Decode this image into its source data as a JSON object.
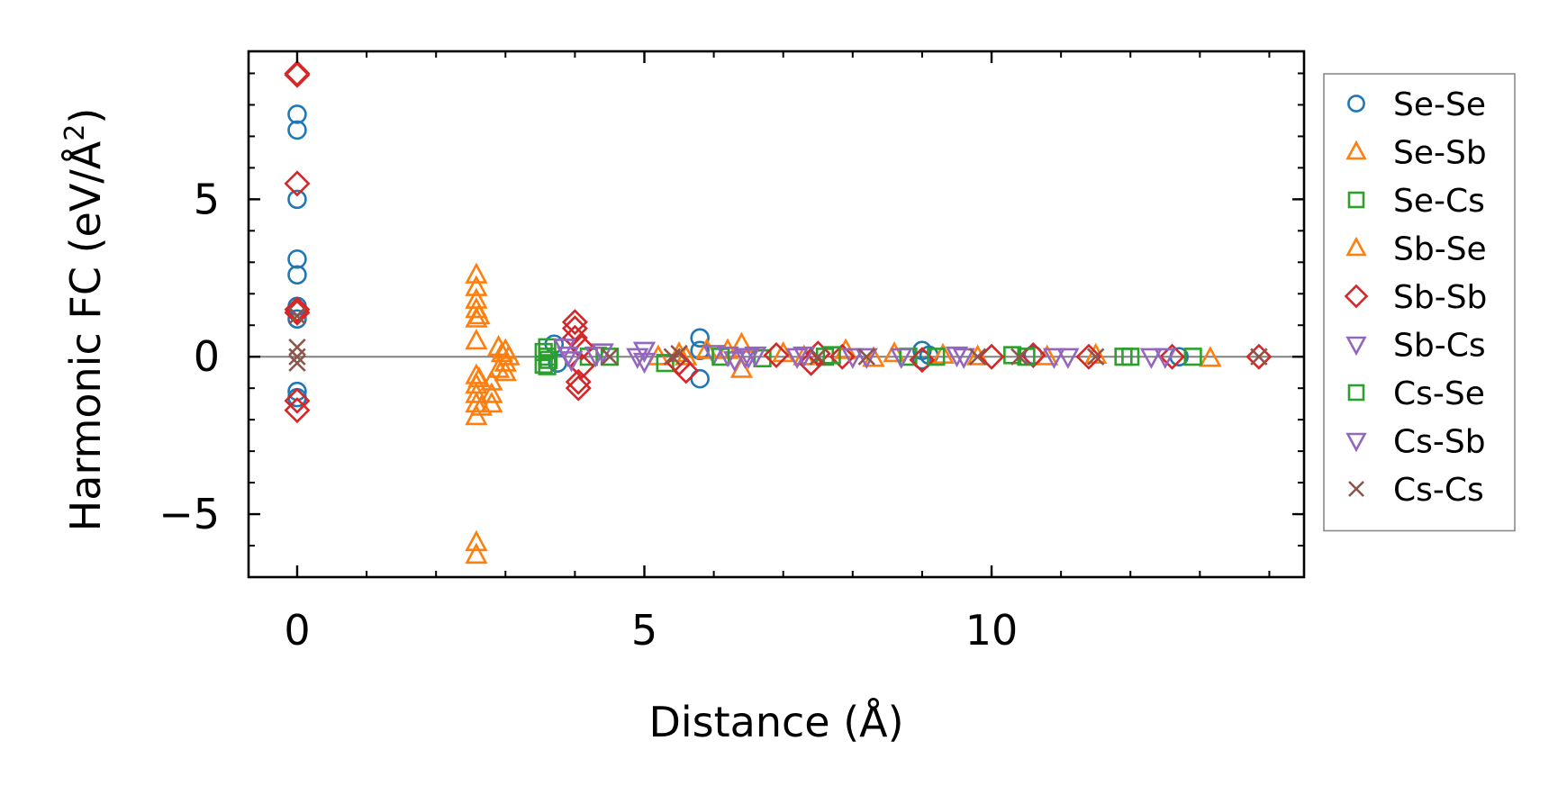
{
  "chart_data": {
    "type": "scatter",
    "xlabel": "Distance (Å)",
    "ylabel": "Harmonic FC (eV/Å",
    "ylabel_sup": "2",
    "ylabel_close": ")",
    "xlim": [
      -0.7,
      14.5
    ],
    "ylim": [
      -7.0,
      9.7
    ],
    "xticks": [
      0,
      5,
      10
    ],
    "xtick_labels": [
      "0",
      "5",
      "10"
    ],
    "yticks": [
      -5,
      0,
      5
    ],
    "ytick_labels": [
      "−5",
      "0",
      "5"
    ],
    "x_minor_step": 1,
    "y_minor_step": 1,
    "zero_line": true,
    "legend_position": "outside-right",
    "series": [
      {
        "name": "Se-Se",
        "marker": "circle",
        "color": "#1f77b4",
        "points": [
          [
            0,
            7.7
          ],
          [
            0,
            7.2
          ],
          [
            0,
            5.0
          ],
          [
            0,
            3.1
          ],
          [
            0,
            2.6
          ],
          [
            0,
            1.6
          ],
          [
            0,
            1.2
          ],
          [
            0,
            -1.1
          ],
          [
            0,
            -1.3
          ],
          [
            3.7,
            0.4
          ],
          [
            3.75,
            -0.2
          ],
          [
            5.8,
            0.6
          ],
          [
            5.8,
            -0.7
          ],
          [
            5.8,
            0.2
          ],
          [
            9.0,
            0.2
          ],
          [
            9.0,
            -0.1
          ],
          [
            9.1,
            0.05
          ],
          [
            10.6,
            0.05
          ],
          [
            12.7,
            0.0
          ]
        ]
      },
      {
        "name": "Se-Sb",
        "marker": "triangle-up",
        "color": "#ff7f0e",
        "points": [
          [
            2.58,
            2.6
          ],
          [
            2.58,
            2.2
          ],
          [
            2.58,
            1.8
          ],
          [
            2.58,
            1.5
          ],
          [
            2.58,
            1.2
          ],
          [
            2.58,
            0.5
          ],
          [
            2.58,
            -0.6
          ],
          [
            2.58,
            -0.9
          ],
          [
            2.58,
            -1.2
          ],
          [
            2.58,
            -1.5
          ],
          [
            2.58,
            -1.9
          ],
          [
            2.58,
            -5.9
          ],
          [
            2.58,
            -6.3
          ],
          [
            2.8,
            -0.8
          ],
          [
            2.8,
            -1.2
          ],
          [
            2.8,
            -1.5
          ],
          [
            2.9,
            0.3
          ],
          [
            2.9,
            -0.4
          ],
          [
            3.0,
            0.2
          ],
          [
            3.0,
            -0.2
          ],
          [
            3.05,
            0.0
          ],
          [
            5.2,
            0.0
          ],
          [
            5.5,
            0.1
          ],
          [
            5.9,
            0.2
          ],
          [
            6.4,
            0.4
          ],
          [
            6.4,
            -0.4
          ],
          [
            7.0,
            0.1
          ],
          [
            7.9,
            0.2
          ],
          [
            8.6,
            0.1
          ],
          [
            9.3,
            0.05
          ],
          [
            10.8,
            0.0
          ],
          [
            11.5,
            0.05
          ],
          [
            13.15,
            -0.05
          ]
        ]
      },
      {
        "name": "Se-Cs",
        "marker": "square",
        "color": "#2ca02c",
        "points": [
          [
            3.6,
            0.3
          ],
          [
            3.6,
            0.0
          ],
          [
            3.6,
            -0.3
          ],
          [
            3.62,
            -0.1
          ],
          [
            4.2,
            0.0
          ],
          [
            5.3,
            -0.2
          ],
          [
            6.7,
            -0.05
          ],
          [
            7.6,
            0.0
          ],
          [
            8.8,
            0.0
          ],
          [
            10.3,
            0.05
          ],
          [
            11.9,
            0.0
          ],
          [
            12.9,
            0.0
          ]
        ]
      },
      {
        "name": "Sb-Se",
        "marker": "triangle-up",
        "color": "#ff7f0e",
        "points": [
          [
            2.62,
            1.3
          ],
          [
            2.62,
            -0.7
          ],
          [
            2.65,
            -1.6
          ],
          [
            2.95,
            0.1
          ],
          [
            3.0,
            -0.5
          ],
          [
            5.6,
            0.0
          ],
          [
            6.2,
            0.2
          ],
          [
            7.3,
            0.0
          ],
          [
            8.3,
            -0.05
          ],
          [
            9.8,
            0.0
          ]
        ]
      },
      {
        "name": "Sb-Sb",
        "marker": "diamond",
        "color": "#d62728",
        "points": [
          [
            0,
            9.0
          ],
          [
            0,
            8.95
          ],
          [
            0,
            5.5
          ],
          [
            0,
            1.5
          ],
          [
            0,
            1.4
          ],
          [
            0,
            -1.4
          ],
          [
            0,
            -1.7
          ],
          [
            4.0,
            1.1
          ],
          [
            4.0,
            0.9
          ],
          [
            4.0,
            0.6
          ],
          [
            4.05,
            -0.8
          ],
          [
            4.05,
            -1.0
          ],
          [
            4.1,
            0.3
          ],
          [
            4.1,
            -0.3
          ],
          [
            5.5,
            -0.2
          ],
          [
            5.6,
            -0.45
          ],
          [
            6.9,
            0.05
          ],
          [
            7.5,
            0.1
          ],
          [
            7.4,
            -0.2
          ],
          [
            7.85,
            0.0
          ],
          [
            9.0,
            -0.1
          ],
          [
            10.0,
            0.0
          ],
          [
            10.6,
            0.05
          ],
          [
            11.4,
            0.0
          ],
          [
            12.6,
            0.0
          ],
          [
            13.85,
            0.0
          ]
        ]
      },
      {
        "name": "Sb-Cs",
        "marker": "triangle-down",
        "color": "#9467bd",
        "points": [
          [
            3.85,
            0.3
          ],
          [
            3.9,
            0.05
          ],
          [
            4.3,
            0.05
          ],
          [
            5.0,
            0.2
          ],
          [
            5.0,
            -0.15
          ],
          [
            6.0,
            0.1
          ],
          [
            6.3,
            -0.1
          ],
          [
            6.5,
            0.0
          ],
          [
            7.3,
            0.05
          ],
          [
            8.2,
            0.0
          ],
          [
            9.5,
            0.05
          ],
          [
            10.9,
            0.0
          ],
          [
            12.5,
            0.0
          ]
        ]
      },
      {
        "name": "Cs-Se",
        "marker": "square",
        "color": "#2ca02c",
        "points": [
          [
            3.55,
            0.15
          ],
          [
            3.55,
            -0.25
          ],
          [
            4.5,
            0.0
          ],
          [
            6.1,
            0.0
          ],
          [
            7.7,
            0.05
          ],
          [
            9.2,
            0.0
          ],
          [
            10.5,
            0.0
          ],
          [
            12.0,
            0.0
          ]
        ]
      },
      {
        "name": "Cs-Sb",
        "marker": "triangle-down",
        "color": "#9467bd",
        "points": [
          [
            3.95,
            -0.1
          ],
          [
            4.4,
            0.15
          ],
          [
            4.9,
            0.0
          ],
          [
            6.2,
            0.05
          ],
          [
            6.45,
            0.0
          ],
          [
            6.6,
            0.05
          ],
          [
            7.2,
            0.0
          ],
          [
            8.0,
            0.0
          ],
          [
            8.7,
            0.0
          ],
          [
            9.6,
            0.0
          ],
          [
            11.1,
            0.0
          ],
          [
            12.3,
            0.0
          ]
        ]
      },
      {
        "name": "Cs-Cs",
        "marker": "x",
        "color": "#8c564b",
        "points": [
          [
            0,
            1.3
          ],
          [
            0,
            0.3
          ],
          [
            0,
            0.0
          ],
          [
            0,
            -0.2
          ],
          [
            4.5,
            0.0
          ],
          [
            5.4,
            0.0
          ],
          [
            5.5,
            0.1
          ],
          [
            7.5,
            0.0
          ],
          [
            8.2,
            0.0
          ],
          [
            9.8,
            0.0
          ],
          [
            10.4,
            0.0
          ],
          [
            11.5,
            0.0
          ],
          [
            13.85,
            0.0
          ]
        ]
      }
    ]
  }
}
